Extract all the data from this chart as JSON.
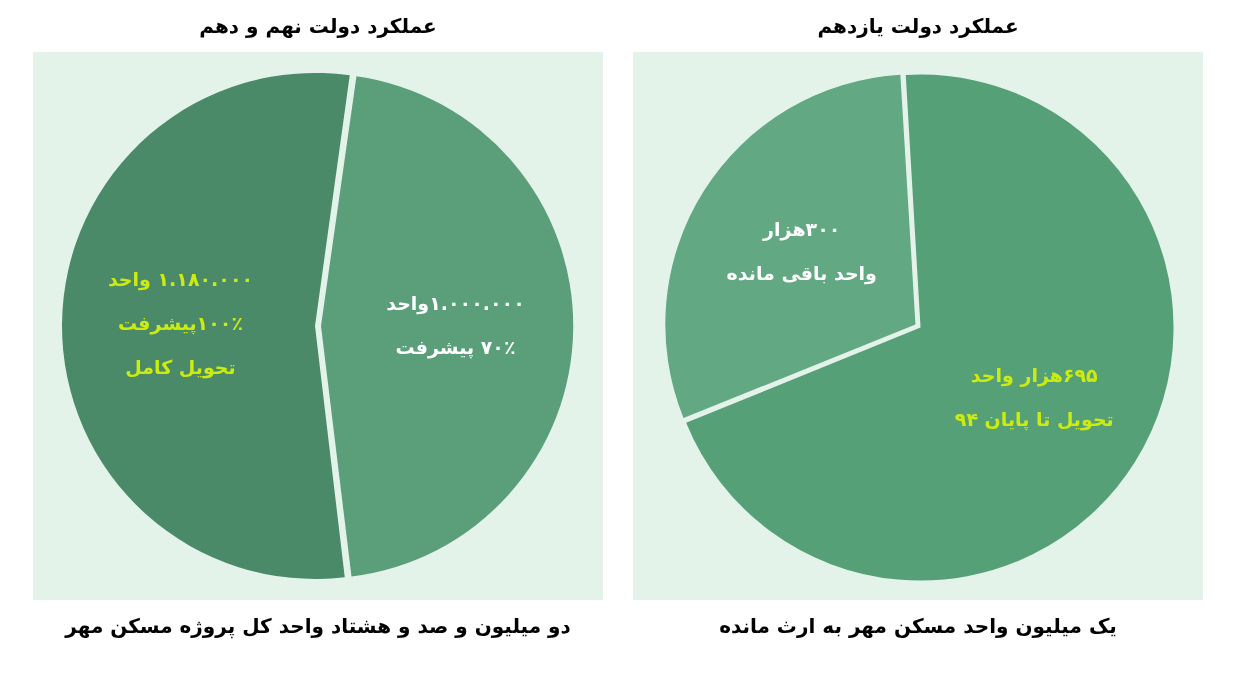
{
  "chart_data": [
    {
      "type": "pie",
      "title": "عملکرد دولت یازدهم",
      "categories": [
        "واحد باقی مانده",
        "تحویل تا پایان ۹۴"
      ],
      "values": [
        300,
        695
      ],
      "value_labels": [
        "۳۰۰هزار",
        "۶۹۵هزار واحد"
      ],
      "colors": [
        "#62a883",
        "#56a078"
      ],
      "annotations": [
        "یک میلیون واحد مسکن مهر به ارث مانده"
      ]
    },
    {
      "type": "pie",
      "title": "عملکرد دولت نهم و دهم",
      "categories": [
        "۷۰٪ پیشرفت",
        "۱۰۰٪پیشرفت\nتحویل کامل"
      ],
      "values": [
        1000000,
        1180000
      ],
      "value_labels": [
        "۱.۰۰۰.۰۰۰واحد",
        "۱.۱۸۰.۰۰۰ واحد"
      ],
      "colors": [
        "#5a9e7a",
        "#4a8a68"
      ],
      "annotations": [
        "دو میلیون و صد و هشتاد واحد کل پروژه مسکن مهر"
      ]
    }
  ]
}
